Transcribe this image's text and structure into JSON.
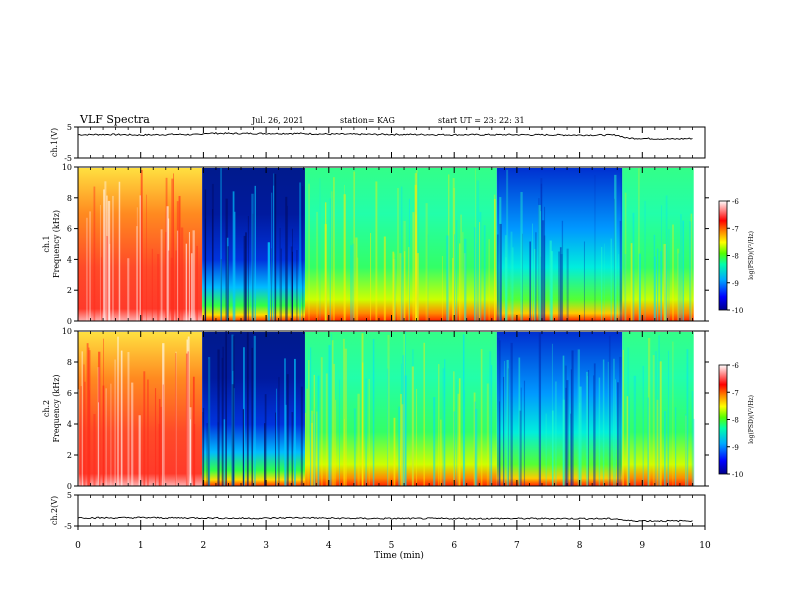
{
  "header": {
    "title": "VLF Spectra",
    "date": "Jul. 26, 2021",
    "station": "station= KAG",
    "start": "start  UT  =   23: 22: 31"
  },
  "colors": {
    "spectrum_stops": [
      "#00008b",
      "#0000ff",
      "#00aaff",
      "#00ffaa",
      "#55ff00",
      "#ffff00",
      "#ff8800",
      "#ff0000",
      "#ffffff"
    ],
    "trace": "#000000"
  },
  "chart_data": [
    {
      "type": "line",
      "id": "ch1_voltage",
      "ylabel": "ch.1(V)",
      "ylim": [
        -5,
        5
      ],
      "yticks": [
        "5",
        "-5"
      ],
      "x_unit": "min",
      "x": [
        0,
        0.5,
        1,
        1.5,
        1.98,
        2.0,
        2.5,
        3,
        3.5,
        4,
        5,
        6,
        7,
        8,
        8.6,
        8.75,
        9.5,
        9.8
      ],
      "y": [
        2.5,
        2.6,
        2.4,
        2.6,
        2.5,
        3.0,
        2.9,
        2.9,
        2.9,
        2.7,
        2.6,
        2.5,
        2.5,
        2.4,
        2.4,
        1.4,
        1.1,
        1.3
      ]
    },
    {
      "type": "heatmap",
      "id": "ch1_spectrogram",
      "ylabel": "ch.1",
      "ylabel2": "Frequency (kHz)",
      "ylim": [
        0,
        10
      ],
      "yticks": [
        "0",
        "2",
        "4",
        "6",
        "8",
        "10"
      ],
      "x_unit": "min",
      "colorbar": {
        "label": "log(PSD)(V²/Hz)",
        "ticks": [
          "-6",
          "-7",
          "-8",
          "-9",
          "-10"
        ],
        "range": [
          -10,
          -6
        ]
      },
      "segments": [
        {
          "x": [
            0,
            1.98
          ],
          "level": "high"
        },
        {
          "x": [
            1.98,
            3.62
          ],
          "level": "very-low"
        },
        {
          "x": [
            3.62,
            6.68
          ],
          "level": "mid"
        },
        {
          "x": [
            6.68,
            8.68
          ],
          "level": "low"
        },
        {
          "x": [
            8.68,
            9.82
          ],
          "level": "mid"
        }
      ]
    },
    {
      "type": "heatmap",
      "id": "ch2_spectrogram",
      "ylabel": "ch.2",
      "ylabel2": "Frequency (kHz)",
      "ylim": [
        0,
        10
      ],
      "yticks": [
        "0",
        "2",
        "4",
        "6",
        "8",
        "10"
      ],
      "x_unit": "min",
      "colorbar": {
        "label": "log(PSD)(V²/Hz)",
        "ticks": [
          "-6",
          "-7",
          "-8",
          "-9",
          "-10"
        ],
        "range": [
          -10,
          -6
        ]
      },
      "segments": [
        {
          "x": [
            0,
            1.98
          ],
          "level": "high"
        },
        {
          "x": [
            1.98,
            3.62
          ],
          "level": "very-low"
        },
        {
          "x": [
            3.62,
            6.68
          ],
          "level": "mid"
        },
        {
          "x": [
            6.68,
            8.68
          ],
          "level": "low"
        },
        {
          "x": [
            8.68,
            9.82
          ],
          "level": "mid"
        }
      ]
    },
    {
      "type": "line",
      "id": "ch2_voltage",
      "ylabel": "ch.2(V)",
      "ylim": [
        -5,
        5
      ],
      "yticks": [
        "5",
        "-5"
      ],
      "x_unit": "min",
      "x": [
        0,
        0.5,
        1,
        1.5,
        2,
        2.5,
        3,
        3.5,
        4,
        5,
        6,
        7,
        8,
        8.6,
        8.75,
        9.5,
        9.8
      ],
      "y": [
        -2.3,
        -2.4,
        -2.3,
        -2.4,
        -2.4,
        -2.5,
        -2.5,
        -2.3,
        -2.5,
        -2.6,
        -2.6,
        -2.6,
        -2.6,
        -2.7,
        -3.3,
        -3.4,
        -3.3
      ]
    }
  ],
  "xaxis": {
    "label": "Time (min)",
    "range": [
      0,
      10
    ],
    "ticks": [
      "0",
      "1",
      "2",
      "3",
      "4",
      "5",
      "6",
      "7",
      "8",
      "9",
      "10"
    ]
  }
}
